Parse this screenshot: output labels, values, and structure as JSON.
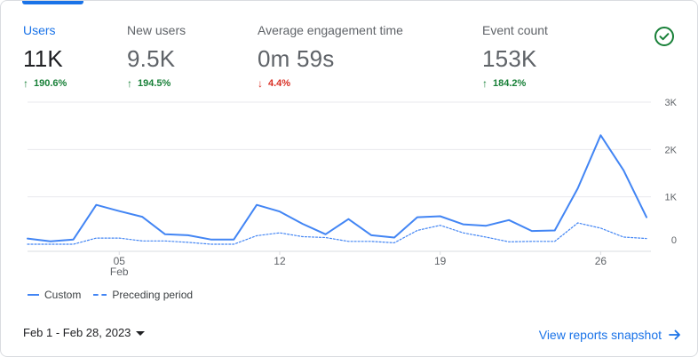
{
  "metrics": [
    {
      "label": "Users",
      "value": "11K",
      "change": "190.6%",
      "direction": "up"
    },
    {
      "label": "New users",
      "value": "9.5K",
      "change": "194.5%",
      "direction": "up"
    },
    {
      "label": "Average engagement time",
      "value": "0m 59s",
      "change": "4.4%",
      "direction": "down"
    },
    {
      "label": "Event count",
      "value": "153K",
      "change": "184.2%",
      "direction": "up"
    }
  ],
  "status_icon": "check-circle-icon",
  "colors": {
    "accent": "#1a73e8",
    "series": "#4285f4",
    "up": "#188038",
    "down": "#d93025"
  },
  "chart_data": {
    "type": "line",
    "x": [
      1,
      2,
      3,
      4,
      5,
      6,
      7,
      8,
      9,
      10,
      11,
      12,
      13,
      14,
      15,
      16,
      17,
      18,
      19,
      20,
      21,
      22,
      23,
      24,
      25,
      26,
      27,
      28
    ],
    "x_tick_labels": [
      {
        "x": 5,
        "label": "05",
        "sub": "Feb"
      },
      {
        "x": 12,
        "label": "12"
      },
      {
        "x": 19,
        "label": "19"
      },
      {
        "x": 26,
        "label": "26"
      }
    ],
    "y_ticks": [
      {
        "value": 0,
        "label": "0"
      },
      {
        "value": 1000,
        "label": "1K"
      },
      {
        "value": 2000,
        "label": "2K"
      },
      {
        "value": 3000,
        "label": "3K"
      }
    ],
    "ylim": [
      -150,
      3000
    ],
    "grid": true,
    "legend_position": "bottom-left",
    "series": [
      {
        "name": "Custom",
        "style": "solid",
        "values": [
          120,
          60,
          100,
          830,
          700,
          580,
          210,
          190,
          100,
          100,
          830,
          690,
          430,
          210,
          530,
          190,
          140,
          570,
          590,
          420,
          390,
          510,
          280,
          290,
          1180,
          2300,
          1560,
          570
        ]
      },
      {
        "name": "Preceding period",
        "style": "dashed",
        "values": [
          0,
          0,
          0,
          130,
          130,
          70,
          70,
          40,
          0,
          0,
          180,
          240,
          160,
          140,
          60,
          60,
          30,
          290,
          400,
          240,
          150,
          50,
          60,
          60,
          450,
          340,
          150,
          120
        ]
      }
    ]
  },
  "legend": {
    "custom": "Custom",
    "preceding": "Preceding period"
  },
  "footer": {
    "date_range": "Feb 1 - Feb 28, 2023",
    "snapshot_link": "View reports snapshot"
  }
}
